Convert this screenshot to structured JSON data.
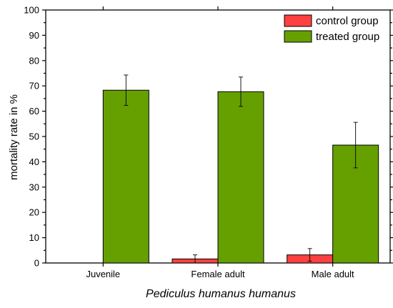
{
  "chart_data": {
    "type": "bar",
    "xlabel": "Pediculus humanus humanus",
    "ylabel": "mortality rate in %",
    "ylim": [
      0,
      100
    ],
    "yticks": [
      0,
      10,
      20,
      30,
      40,
      50,
      60,
      70,
      80,
      90,
      100
    ],
    "categories": [
      "Juvenile",
      "Female adult",
      "Male adult"
    ],
    "series": [
      {
        "name": "control group",
        "color": "#ff4040",
        "values": [
          0,
          1.6,
          3.2
        ],
        "errors": [
          0,
          1.6,
          2.5
        ]
      },
      {
        "name": "treated group",
        "color": "#66a000",
        "values": [
          68.3,
          67.7,
          46.6
        ],
        "errors": [
          6.0,
          5.8,
          9.0
        ]
      }
    ],
    "legend_position": "top-right",
    "grid": false
  }
}
